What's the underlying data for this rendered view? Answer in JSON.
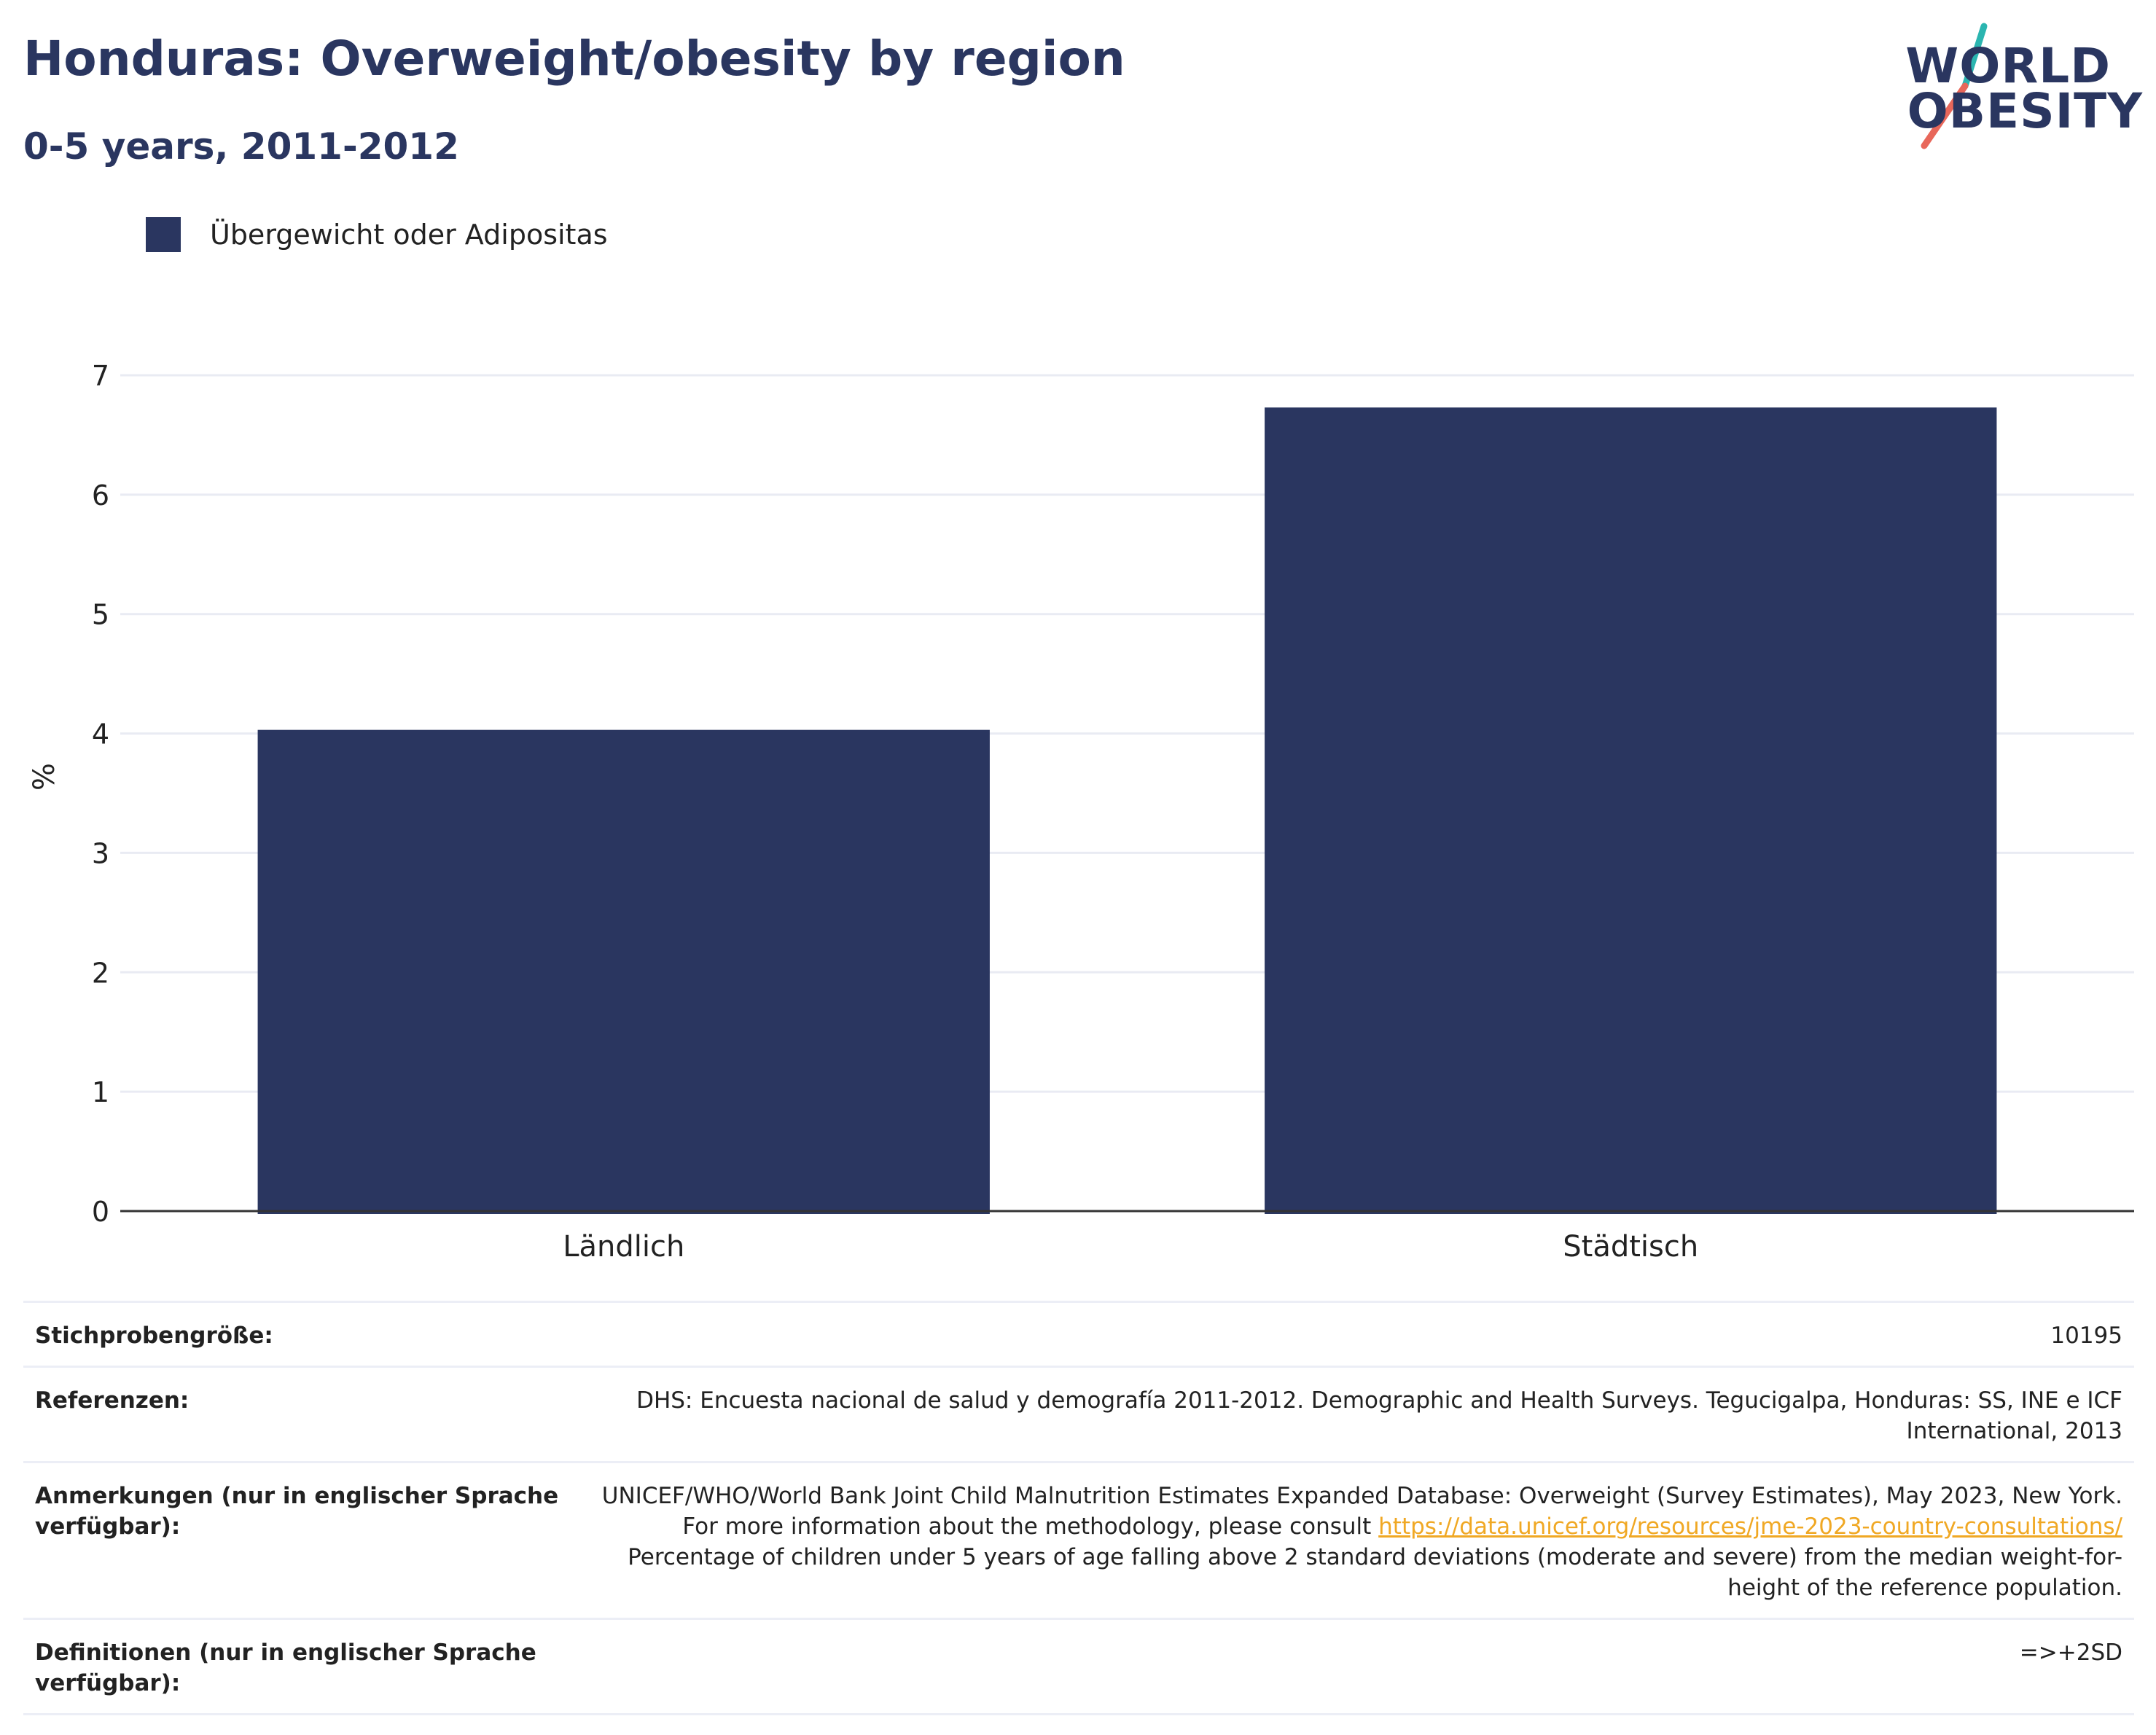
{
  "header": {
    "title": "Honduras: Overweight/obesity by region",
    "subtitle": "0-5 years, 2011-2012"
  },
  "logo": {
    "line1": "WORLD",
    "line2": "OBESITY",
    "accent_teal": "#2bb5b0",
    "accent_coral": "#e8675a"
  },
  "legend": {
    "items": [
      {
        "label": "Übergewicht oder Adipositas",
        "color": "#2a3660"
      }
    ]
  },
  "chart_data": {
    "type": "bar",
    "categories": [
      "Ländlich",
      "Städtisch"
    ],
    "series": [
      {
        "name": "Übergewicht oder Adipositas",
        "values": [
          4.03,
          6.73
        ],
        "color": "#2a3660"
      }
    ],
    "ylabel": "%",
    "ylim": [
      0,
      7
    ],
    "yticks": [
      "0",
      "1",
      "2",
      "3",
      "4",
      "5",
      "6",
      "7"
    ],
    "grid": true,
    "legend_position": "top-left"
  },
  "meta": {
    "sample": {
      "label": "Stichprobengröße:",
      "value": "10195"
    },
    "references": {
      "label": "Referenzen:",
      "value": "DHS: Encuesta nacional de salud y demografía 2011-2012. Demographic and Health Surveys. Tegucigalpa, Honduras: SS, INE e ICF International, 2013"
    },
    "notes": {
      "label": "Anmerkungen (nur in englischer Sprache verfügbar):",
      "text1": "UNICEF/WHO/World Bank Joint Child Malnutrition Estimates Expanded Database: Overweight (Survey Estimates), May 2023, New York. For more information about the methodology, please consult ",
      "link": "https://data.unicef.org/resources/jme-2023-country-consultations/",
      "text2": " Percentage of children under 5 years of age falling above 2 standard deviations (moderate and severe) from the median weight-for-height of the reference population."
    },
    "definitions": {
      "label": "Definitionen (nur in englischer Sprache verfügbar):",
      "value": "=>+2SD"
    }
  }
}
